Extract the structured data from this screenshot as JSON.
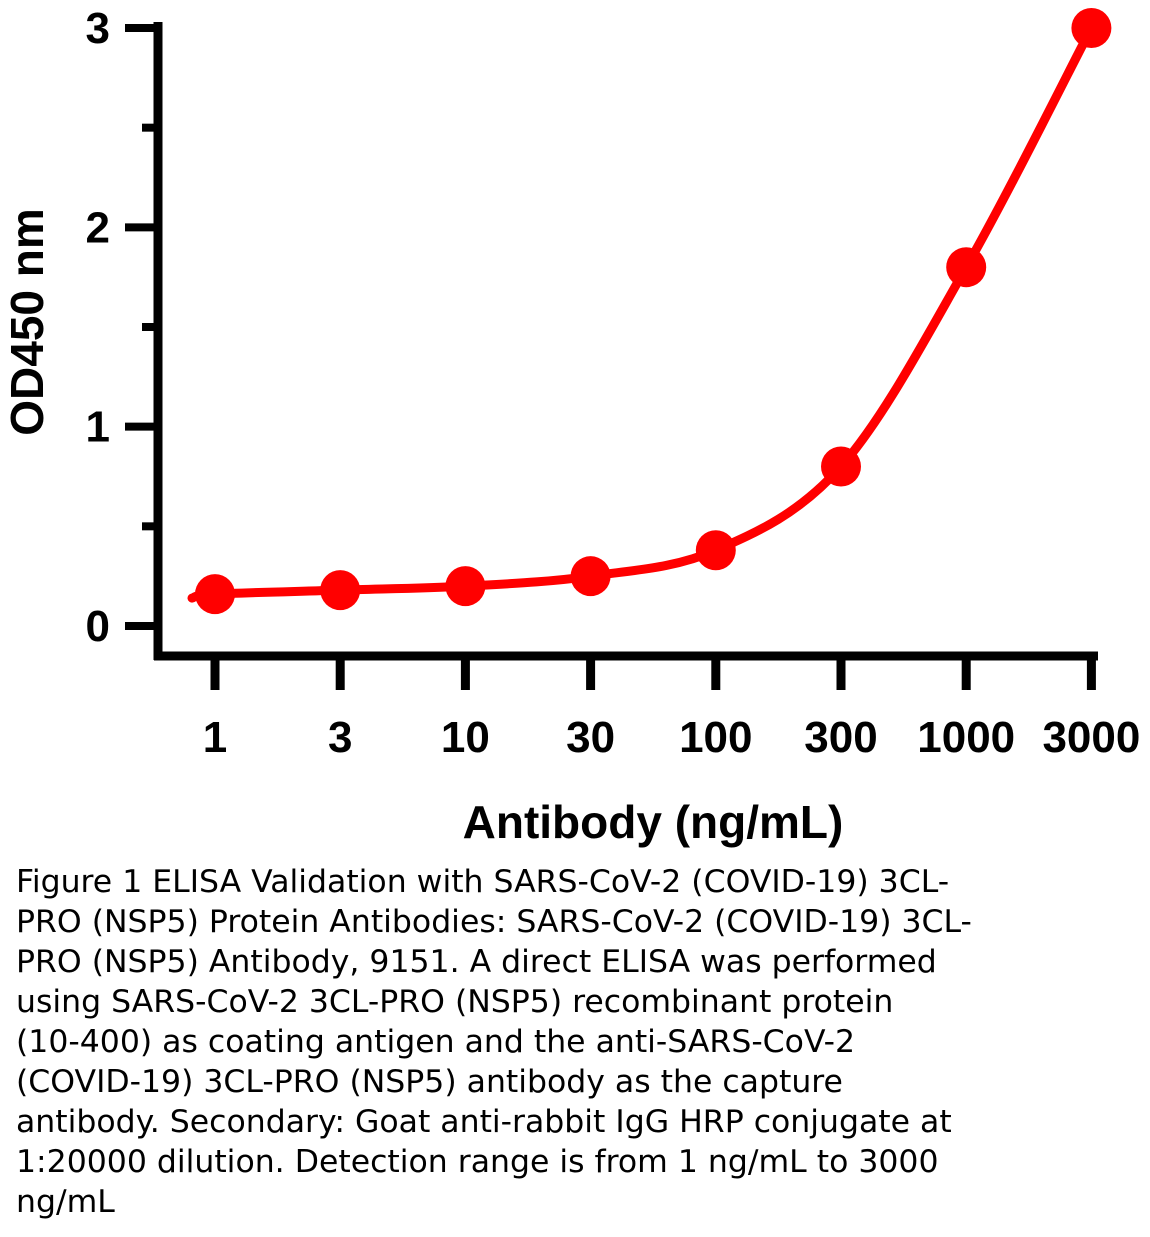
{
  "chart_data": {
    "type": "line",
    "x_scale": "log",
    "categories": [
      "1",
      "3",
      "10",
      "30",
      "100",
      "300",
      "1000",
      "3000"
    ],
    "x": [
      1,
      3,
      10,
      30,
      100,
      300,
      1000,
      3000
    ],
    "series": [
      {
        "name": "Antibody",
        "values": [
          0.16,
          0.18,
          0.2,
          0.25,
          0.38,
          0.8,
          1.8,
          3.0
        ]
      }
    ],
    "xlabel": "Antibody (ng/mL)",
    "ylabel": "OD450 nm",
    "ylim": [
      0,
      3
    ],
    "yticks": [
      "0",
      "1",
      "2",
      "3"
    ],
    "grid": false,
    "line_color": "#ff0000"
  },
  "caption": "Figure 1 ELISA Validation with SARS-CoV-2 (COVID-19) 3CL-\nPRO (NSP5) Protein Antibodies: SARS-CoV-2 (COVID-19) 3CL-\nPRO (NSP5) Antibody, 9151. A direct ELISA was performed\nusing SARS-CoV-2 3CL-PRO (NSP5) recombinant protein\n(10-400) as coating antigen and the anti-SARS-CoV-2\n(COVID-19) 3CL-PRO (NSP5) antibody as the capture\nantibody. Secondary: Goat anti-rabbit IgG HRP conjugate at\n1:20000 dilution. Detection range is from 1 ng/mL to 3000\nng/mL"
}
